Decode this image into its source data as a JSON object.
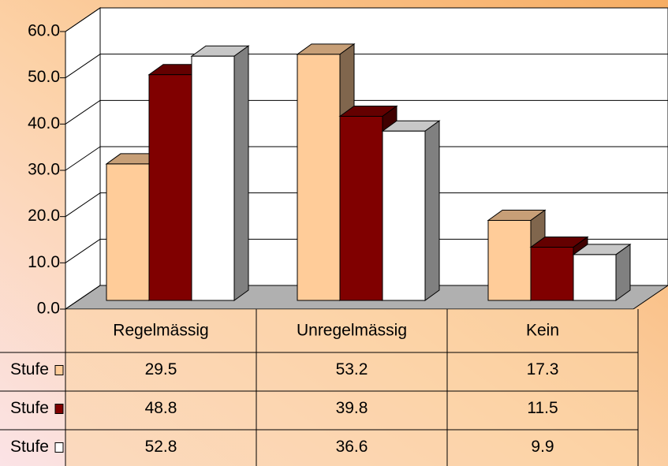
{
  "chart_data": {
    "type": "bar",
    "categories": [
      "Regelmässig",
      "Unregelmässig",
      "Kein"
    ],
    "series": [
      {
        "name": "Stufe",
        "color": "#ffcc99",
        "values": [
          29.5,
          53.2,
          17.3
        ]
      },
      {
        "name": "Stufe",
        "color": "#800000",
        "values": [
          48.8,
          39.8,
          11.5
        ]
      },
      {
        "name": "Stufe",
        "color": "#ffffff",
        "values": [
          52.8,
          36.6,
          9.9
        ]
      }
    ],
    "ylim": [
      0,
      60
    ],
    "yticks": [
      {
        "value": 0,
        "label": "0.0"
      },
      {
        "value": 10,
        "label": "10.0"
      },
      {
        "value": 20,
        "label": "20.0"
      },
      {
        "value": 30,
        "label": "30.0"
      },
      {
        "value": 40,
        "label": "40.0"
      },
      {
        "value": 50,
        "label": "50.0"
      },
      {
        "value": 60,
        "label": "60.0"
      }
    ],
    "grid": true
  }
}
